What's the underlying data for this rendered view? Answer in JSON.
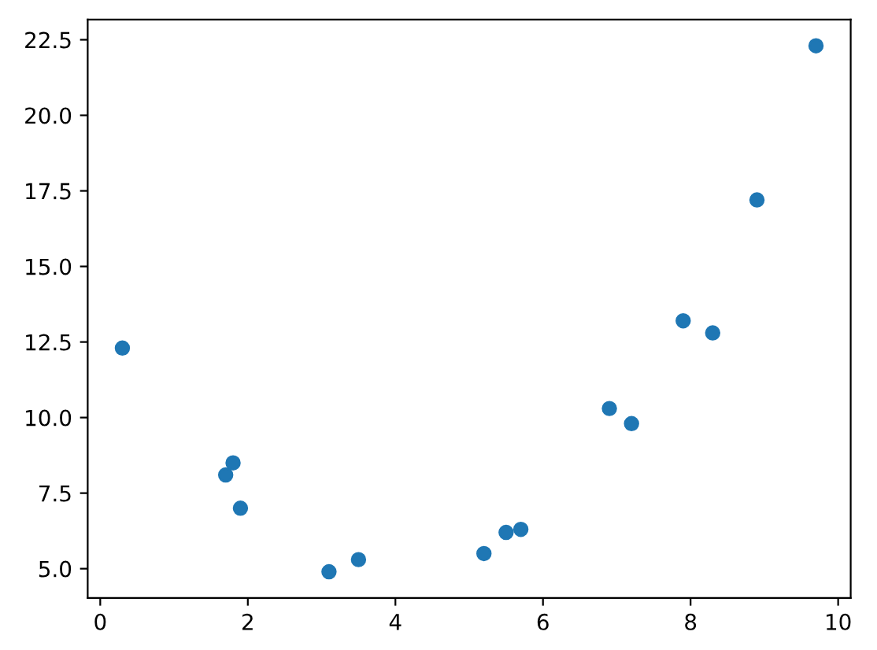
{
  "chart_data": {
    "type": "scatter",
    "x": [
      0.3,
      1.7,
      1.8,
      1.9,
      3.1,
      3.5,
      5.2,
      5.5,
      5.7,
      6.9,
      7.2,
      7.9,
      8.3,
      8.9,
      9.7
    ],
    "values": [
      12.3,
      8.1,
      8.5,
      7.0,
      4.9,
      5.3,
      5.5,
      6.2,
      6.3,
      10.3,
      9.8,
      13.2,
      12.8,
      17.2,
      22.3
    ],
    "color": "#1f77b4",
    "marker": "circle",
    "xlim": [
      -0.17,
      10.17
    ],
    "xticks": [
      0,
      2,
      4,
      6,
      8,
      10
    ],
    "ylim": [
      4.03,
      23.17
    ],
    "yticks": [
      {
        "value": 5,
        "label": "5.0"
      },
      {
        "value": 7.5,
        "label": "7.5"
      },
      {
        "value": 10,
        "label": "10.0"
      },
      {
        "value": 12.5,
        "label": "12.5"
      },
      {
        "value": 15,
        "label": "15.0"
      },
      {
        "value": 17.5,
        "label": "17.5"
      },
      {
        "value": 20,
        "label": "20.0"
      },
      {
        "value": 22.5,
        "label": "22.5"
      }
    ],
    "grid": false,
    "legend": false
  }
}
